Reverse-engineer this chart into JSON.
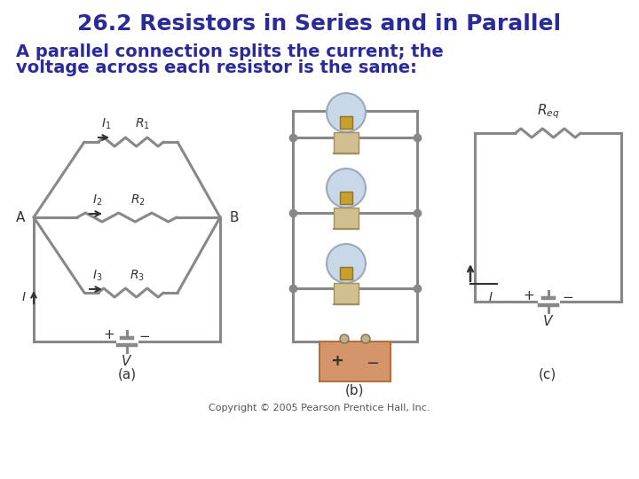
{
  "title": "26.2 Resistors in Series and in Parallel",
  "subtitle_line1": "A parallel connection splits the current; the",
  "subtitle_line2": "voltage across each resistor is the same:",
  "title_color": "#2a2a9a",
  "subtitle_color": "#2a2a9a",
  "title_fontsize": 18,
  "subtitle_fontsize": 14,
  "copyright": "Copyright © 2005 Pearson Prentice Hall, Inc.",
  "label_a": "(a)",
  "label_b": "(b)",
  "label_c": "(c)",
  "circuit_color": "#888888",
  "text_color": "#333333",
  "battery_color_b_face": "#d4956a",
  "battery_color_b_edge": "#b07040"
}
